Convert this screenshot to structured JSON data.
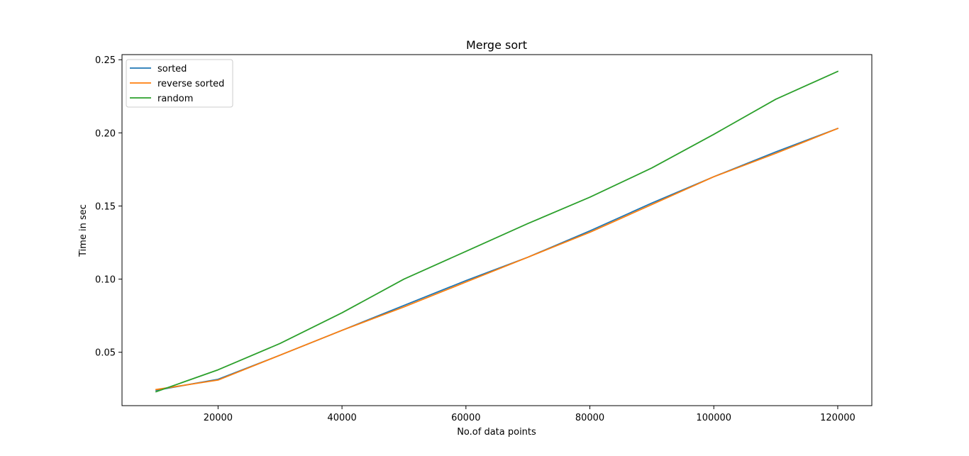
{
  "chart_data": {
    "type": "line",
    "title": "Merge sort",
    "xlabel": "No.of data points",
    "ylabel": "Time in sec",
    "x": [
      10000,
      20000,
      30000,
      40000,
      50000,
      60000,
      70000,
      80000,
      90000,
      100000,
      110000,
      120000
    ],
    "xlim": [
      4500,
      125500
    ],
    "ylim": [
      0.0135,
      0.2535
    ],
    "xticks": [
      20000,
      40000,
      60000,
      80000,
      100000,
      120000
    ],
    "yticks": [
      0.05,
      0.1,
      0.15,
      0.2,
      0.25
    ],
    "xtick_labels": [
      "20000",
      "40000",
      "60000",
      "80000",
      "100000",
      "120000"
    ],
    "ytick_labels": [
      "0.05",
      "0.10",
      "0.15",
      "0.20",
      "0.25"
    ],
    "grid": false,
    "legend_position": "top-left",
    "series": [
      {
        "name": "sorted",
        "color": "#1f77b4",
        "values": [
          0.024,
          0.0315,
          0.048,
          0.065,
          0.082,
          0.099,
          0.115,
          0.133,
          0.152,
          0.17,
          0.187,
          0.203
        ]
      },
      {
        "name": "reverse sorted",
        "color": "#ff7f0e",
        "values": [
          0.0245,
          0.031,
          0.048,
          0.065,
          0.081,
          0.098,
          0.115,
          0.132,
          0.151,
          0.17,
          0.186,
          0.203
        ]
      },
      {
        "name": "random",
        "color": "#2ca02c",
        "values": [
          0.023,
          0.038,
          0.056,
          0.077,
          0.1,
          0.119,
          0.138,
          0.156,
          0.176,
          0.199,
          0.223,
          0.242
        ]
      }
    ]
  }
}
